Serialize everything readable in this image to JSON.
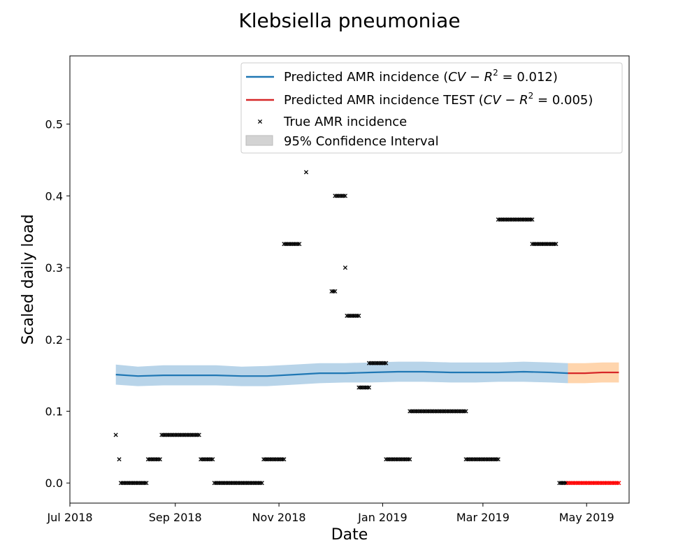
{
  "chart_data": {
    "type": "line",
    "title": "Klebsiella pneumoniae",
    "xlabel": "Date",
    "ylabel": "Scaled daily load",
    "x_axis": {
      "type": "date",
      "range": [
        "2018-07-01",
        "2019-05-26"
      ],
      "ticks": [
        {
          "date": "2018-07-01",
          "label": "Jul 2018"
        },
        {
          "date": "2018-09-01",
          "label": "Sep 2018"
        },
        {
          "date": "2018-11-01",
          "label": "Nov 2018"
        },
        {
          "date": "2019-01-01",
          "label": "Jan 2019"
        },
        {
          "date": "2019-03-01",
          "label": "Mar 2019"
        },
        {
          "date": "2019-05-01",
          "label": "May 2019"
        }
      ]
    },
    "y_axis": {
      "range": [
        -0.028,
        0.595
      ],
      "ticks": [
        {
          "value": 0.0,
          "label": "0.0"
        },
        {
          "value": 0.1,
          "label": "0.1"
        },
        {
          "value": 0.2,
          "label": "0.2"
        },
        {
          "value": 0.3,
          "label": "0.3"
        },
        {
          "value": 0.4,
          "label": "0.4"
        },
        {
          "value": 0.5,
          "label": "0.5"
        }
      ]
    },
    "grid": false,
    "legend": {
      "placement": "top-right",
      "entries": [
        {
          "key": "pred",
          "prefix": "Predicted AMR incidence (",
          "math": "CV − R",
          "sup": "2",
          "suffix": " = 0.012)"
        },
        {
          "key": "test",
          "prefix": "Predicted AMR incidence TEST (",
          "math": "CV − R",
          "sup": "2",
          "suffix": " = 0.005)"
        },
        {
          "key": "true",
          "prefix": "True AMR incidence"
        },
        {
          "key": "ci",
          "prefix": "95% Confidence Interval"
        }
      ]
    },
    "colors": {
      "prediction": "#1f77b4",
      "prediction_band": "#b8d4e9",
      "test": "#d62728",
      "test_band": "#ffd5ad",
      "true_points": "#000000",
      "test_points": "#ff0000",
      "ci_legend": "#d3d3d3"
    },
    "series": [
      {
        "key": "pred",
        "kind": "line_with_band",
        "x": [
          "2018-07-28",
          "2018-08-10",
          "2018-08-25",
          "2018-09-10",
          "2018-09-25",
          "2018-10-10",
          "2018-10-25",
          "2018-11-10",
          "2018-11-25",
          "2018-12-10",
          "2018-12-25",
          "2019-01-10",
          "2019-01-25",
          "2019-02-10",
          "2019-02-25",
          "2019-03-10",
          "2019-03-25",
          "2019-04-10",
          "2019-04-20"
        ],
        "y": [
          0.151,
          0.149,
          0.15,
          0.15,
          0.15,
          0.149,
          0.149,
          0.151,
          0.153,
          0.153,
          0.154,
          0.155,
          0.155,
          0.154,
          0.154,
          0.154,
          0.155,
          0.154,
          0.153
        ],
        "lower": [
          0.137,
          0.135,
          0.136,
          0.136,
          0.136,
          0.135,
          0.135,
          0.137,
          0.139,
          0.14,
          0.14,
          0.141,
          0.141,
          0.14,
          0.14,
          0.141,
          0.141,
          0.14,
          0.139
        ],
        "upper": [
          0.165,
          0.162,
          0.164,
          0.164,
          0.164,
          0.162,
          0.163,
          0.165,
          0.167,
          0.167,
          0.168,
          0.169,
          0.169,
          0.168,
          0.168,
          0.168,
          0.169,
          0.168,
          0.167
        ]
      },
      {
        "key": "test",
        "kind": "line_with_band",
        "x": [
          "2019-04-20",
          "2019-04-30",
          "2019-05-10",
          "2019-05-20"
        ],
        "y": [
          0.153,
          0.153,
          0.154,
          0.154
        ],
        "lower": [
          0.139,
          0.139,
          0.14,
          0.14
        ],
        "upper": [
          0.167,
          0.167,
          0.168,
          0.168
        ]
      },
      {
        "key": "true",
        "kind": "scatter",
        "segments": [
          {
            "start": "2018-07-28",
            "end": "2018-07-28",
            "y": 0.067
          },
          {
            "start": "2018-07-30",
            "end": "2018-07-30",
            "y": 0.033
          },
          {
            "start": "2018-07-31",
            "end": "2018-08-15",
            "y": 0.0
          },
          {
            "start": "2018-08-16",
            "end": "2018-08-23",
            "y": 0.033
          },
          {
            "start": "2018-08-24",
            "end": "2018-09-15",
            "y": 0.067
          },
          {
            "start": "2018-09-16",
            "end": "2018-09-23",
            "y": 0.033
          },
          {
            "start": "2018-09-24",
            "end": "2018-10-22",
            "y": 0.0
          },
          {
            "start": "2018-10-23",
            "end": "2018-11-04",
            "y": 0.033
          },
          {
            "start": "2018-11-04",
            "end": "2018-11-13",
            "y": 0.333
          },
          {
            "start": "2018-11-17",
            "end": "2018-11-17",
            "y": 0.433
          },
          {
            "start": "2018-12-02",
            "end": "2018-12-04",
            "y": 0.267
          },
          {
            "start": "2018-12-04",
            "end": "2018-12-10",
            "y": 0.4
          },
          {
            "start": "2018-12-10",
            "end": "2018-12-10",
            "y": 0.3
          },
          {
            "start": "2018-12-11",
            "end": "2018-12-18",
            "y": 0.233
          },
          {
            "start": "2018-12-18",
            "end": "2018-12-24",
            "y": 0.133
          },
          {
            "start": "2018-12-24",
            "end": "2019-01-03",
            "y": 0.167
          },
          {
            "start": "2019-01-03",
            "end": "2019-01-17",
            "y": 0.033
          },
          {
            "start": "2019-01-17",
            "end": "2019-02-19",
            "y": 0.1
          },
          {
            "start": "2019-02-19",
            "end": "2019-03-10",
            "y": 0.033
          },
          {
            "start": "2019-03-10",
            "end": "2019-03-30",
            "y": 0.367
          },
          {
            "start": "2019-03-30",
            "end": "2019-04-13",
            "y": 0.333
          },
          {
            "start": "2019-04-15",
            "end": "2019-04-19",
            "y": 0.0
          }
        ]
      },
      {
        "key": "test_true",
        "kind": "scatter",
        "segments": [
          {
            "start": "2019-04-20",
            "end": "2019-05-20",
            "y": 0.0
          }
        ]
      }
    ]
  }
}
